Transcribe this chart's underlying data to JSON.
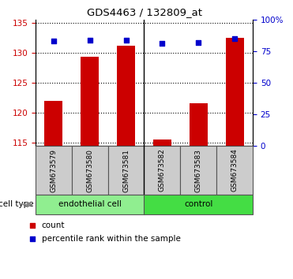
{
  "title": "GDS4463 / 132809_at",
  "samples": [
    "GSM673579",
    "GSM673580",
    "GSM673581",
    "GSM673582",
    "GSM673583",
    "GSM673584"
  ],
  "counts": [
    122.0,
    129.3,
    131.2,
    115.6,
    121.6,
    132.5
  ],
  "percentile_ranks": [
    83,
    84,
    84,
    81,
    82,
    85
  ],
  "ylim_left": [
    114.5,
    135.5
  ],
  "ylim_right": [
    0,
    100
  ],
  "yticks_left": [
    115,
    120,
    125,
    130,
    135
  ],
  "yticks_right": [
    0,
    25,
    50,
    75,
    100
  ],
  "ytick_labels_right": [
    "0",
    "25",
    "50",
    "75",
    "100%"
  ],
  "groups": [
    {
      "label": "endothelial cell",
      "indices": [
        0,
        1,
        2
      ],
      "color": "#90ee90"
    },
    {
      "label": "control",
      "indices": [
        3,
        4,
        5
      ],
      "color": "#44dd44"
    }
  ],
  "bar_color": "#cc0000",
  "scatter_color": "#0000cc",
  "bar_bottom": 114.5,
  "legend_count_color": "#cc0000",
  "legend_pct_color": "#0000cc"
}
